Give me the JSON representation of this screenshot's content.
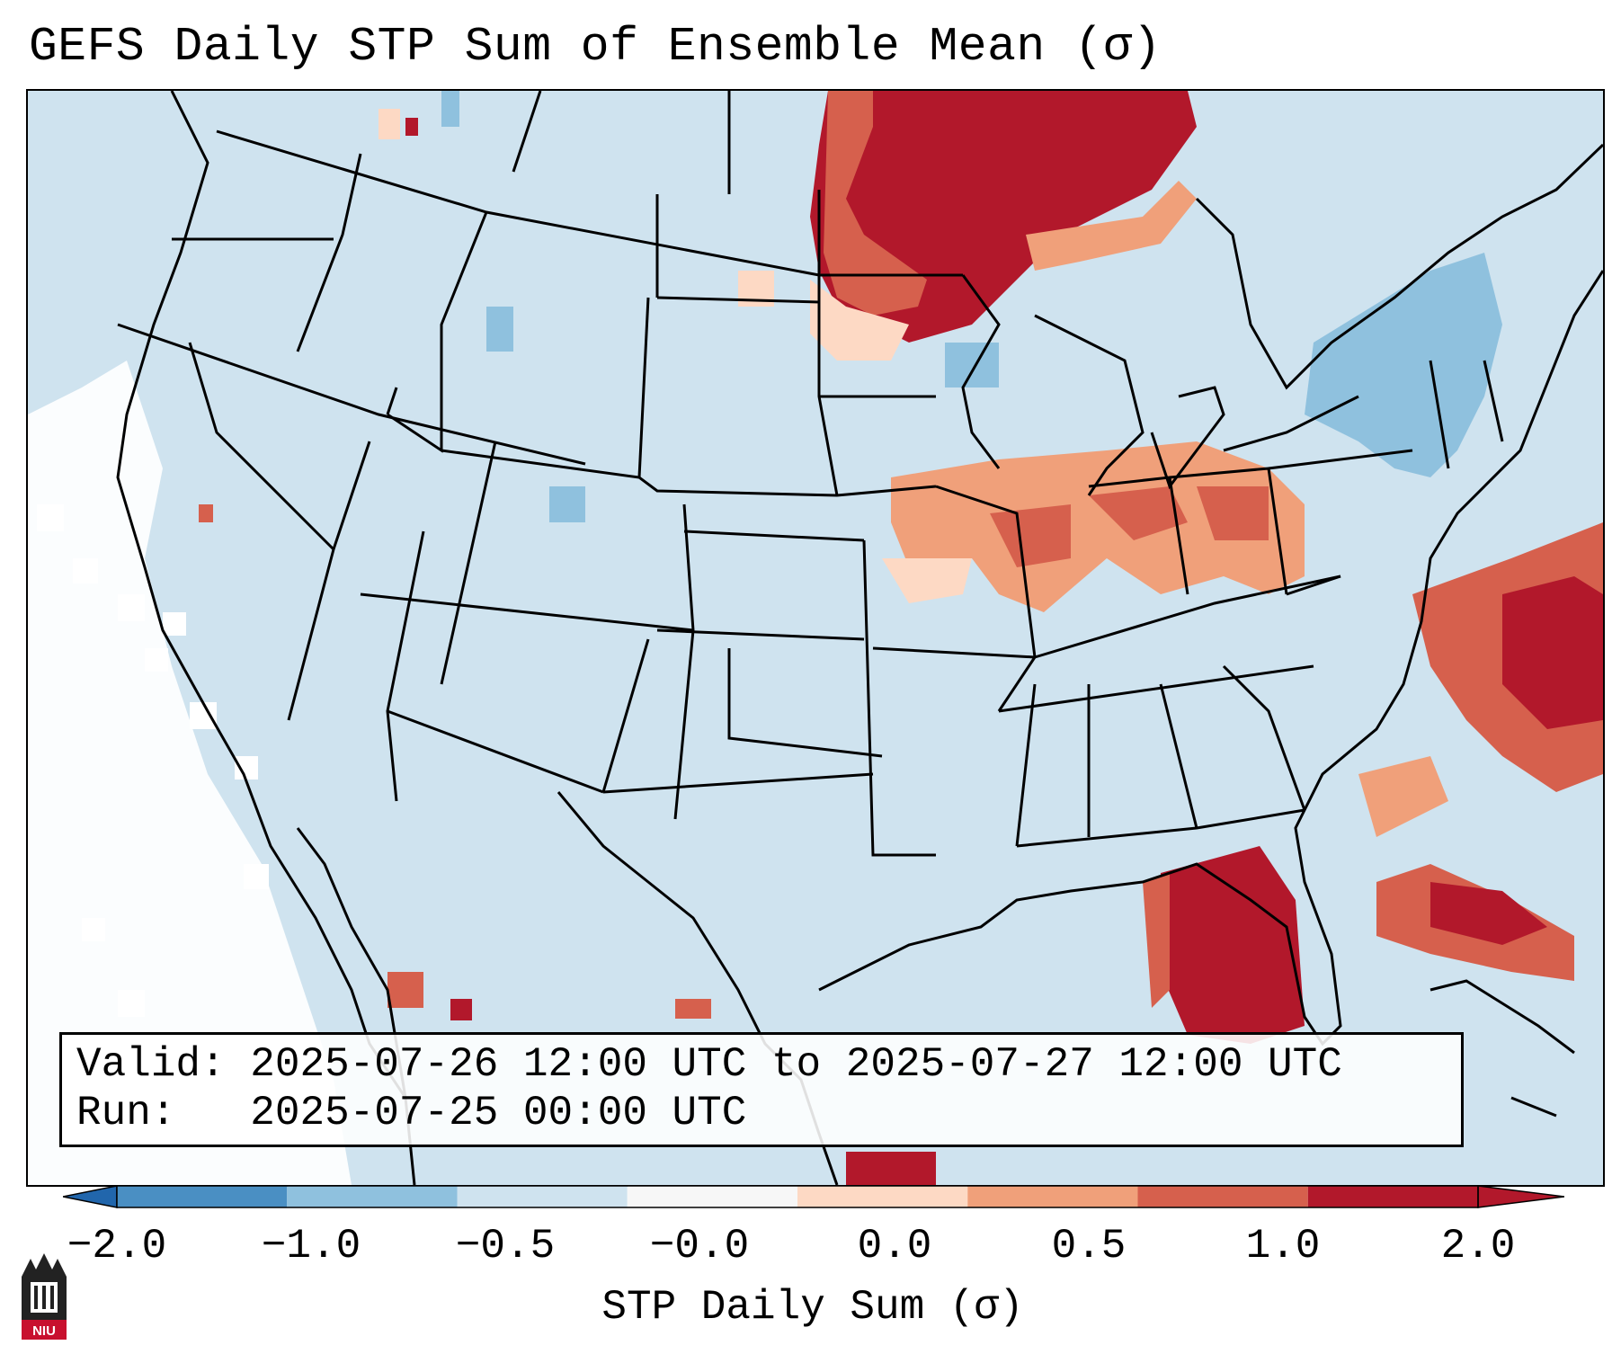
{
  "title": "GEFS Daily STP Sum of Ensemble Mean (σ)",
  "info": {
    "valid_label": "Valid:",
    "valid_value": "2025-07-26 12:00 UTC to 2025-07-27 12:00 UTC",
    "run_label": "Run:",
    "run_value": "2025-07-25 00:00 UTC"
  },
  "colorbar": {
    "label": "STP Daily Sum (σ)",
    "ticks": [
      "−2.0",
      "−1.0",
      "−0.5",
      "−0.0",
      "0.0",
      "0.5",
      "1.0",
      "2.0"
    ],
    "colors": [
      "#4a8fc3",
      "#8fc1de",
      "#cfe3ef",
      "#f7f7f7",
      "#fdd9c4",
      "#f0a07a",
      "#d6604d",
      "#b2182b"
    ],
    "extend_low_color": "#2166ac",
    "extend_high_color": "#b2182b"
  },
  "map": {
    "background_color": "#cfe3ef",
    "region": "Contiguous United States",
    "icons": [
      "state-borders",
      "coastline"
    ]
  },
  "logo": {
    "text": "NIU",
    "color": "#c8102e"
  }
}
